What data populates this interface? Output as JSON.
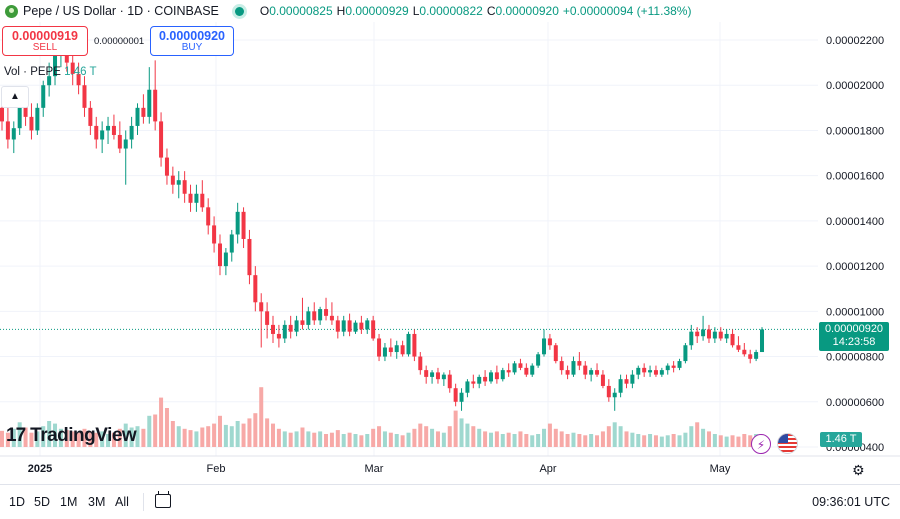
{
  "header": {
    "title": "Pepe / US Dollar · 1D · COINBASE",
    "open_key": "O",
    "open": "0.00000825",
    "high_key": "H",
    "high": "0.00000929",
    "low_key": "L",
    "low": "0.00000822",
    "close_key": "C",
    "close": "0.00000920",
    "change": "+0.00000094 (+11.38%)"
  },
  "trade": {
    "sell_price": "0.00000919",
    "sell_label": "SELL",
    "buy_price": "0.00000920",
    "buy_label": "BUY",
    "spread": "0.00000001"
  },
  "volume_legend": {
    "label": "Vol · PEPE",
    "value": "1.46 T"
  },
  "logo": {
    "text": "TradingView"
  },
  "price_tag": {
    "price": "0.00000920",
    "countdown": "14:23:58"
  },
  "volume_tag": "1.46 T",
  "bottom": {
    "ranges": [
      "1D",
      "5D",
      "1M",
      "3M",
      "All"
    ],
    "clock": "09:36:01 UTC"
  },
  "colors": {
    "up": "#089981",
    "down": "#f23645",
    "vol_up": "#9fd8cf",
    "vol_down": "#f7a9a7",
    "grid": "#f0f3fa"
  },
  "chart_data": {
    "type": "candlestick",
    "y_axis_labels": [
      "0.00002200",
      "0.00002000",
      "0.00001800",
      "0.00001600",
      "0.00001400",
      "0.00001200",
      "0.00001000",
      "0.00000800",
      "0.00000600",
      "0.00000400"
    ],
    "y_axis_values": [
      2.2e-05,
      2e-05,
      1.8e-05,
      1.6e-05,
      1.4e-05,
      1.2e-05,
      1e-05,
      8e-06,
      6e-06,
      4e-06
    ],
    "x_axis_labels": [
      "2025",
      "Feb",
      "Mar",
      "Apr",
      "May"
    ],
    "last_price": 9.2e-06,
    "candles": [
      [
        1.9e-05,
        1.96e-05,
        1.8e-05,
        1.84e-05
      ],
      [
        1.84e-05,
        1.9e-05,
        1.72e-05,
        1.76e-05
      ],
      [
        1.76e-05,
        1.84e-05,
        1.7e-05,
        1.81e-05
      ],
      [
        1.81e-05,
        1.94e-05,
        1.78e-05,
        1.91e-05
      ],
      [
        1.91e-05,
        1.96e-05,
        1.82e-05,
        1.86e-05
      ],
      [
        1.86e-05,
        1.92e-05,
        1.76e-05,
        1.8e-05
      ],
      [
        1.8e-05,
        1.92e-05,
        1.78e-05,
        1.9e-05
      ],
      [
        1.9e-05,
        2.02e-05,
        1.86e-05,
        2e-05
      ],
      [
        2e-05,
        2.1e-05,
        1.95e-05,
        2.04e-05
      ],
      [
        2.04e-05,
        2.18e-05,
        2e-05,
        2.14e-05
      ],
      [
        2.14e-05,
        2.24e-05,
        2.08e-05,
        2.16e-05
      ],
      [
        2.16e-05,
        2.2e-05,
        2.06e-05,
        2.1e-05
      ],
      [
        2.1e-05,
        2.14e-05,
        2e-05,
        2.05e-05
      ],
      [
        2.05e-05,
        2.1e-05,
        1.96e-05,
        2e-05
      ],
      [
        2e-05,
        2.04e-05,
        1.86e-05,
        1.9e-05
      ],
      [
        1.9e-05,
        1.93e-05,
        1.78e-05,
        1.82e-05
      ],
      [
        1.82e-05,
        1.86e-05,
        1.72e-05,
        1.76e-05
      ],
      [
        1.76e-05,
        1.84e-05,
        1.7e-05,
        1.8e-05
      ],
      [
        1.8e-05,
        1.86e-05,
        1.74e-05,
        1.82e-05
      ],
      [
        1.82e-05,
        1.87e-05,
        1.76e-05,
        1.78e-05
      ],
      [
        1.78e-05,
        1.84e-05,
        1.7e-05,
        1.72e-05
      ],
      [
        1.72e-05,
        1.8e-05,
        1.56e-05,
        1.76e-05
      ],
      [
        1.76e-05,
        1.86e-05,
        1.72e-05,
        1.82e-05
      ],
      [
        1.82e-05,
        1.92e-05,
        1.78e-05,
        1.9e-05
      ],
      [
        1.9e-05,
        1.96e-05,
        1.83e-05,
        1.86e-05
      ],
      [
        1.86e-05,
        2.08e-05,
        1.83e-05,
        1.98e-05
      ],
      [
        1.98e-05,
        2.11e-05,
        1.8e-05,
        1.84e-05
      ],
      [
        1.84e-05,
        1.88e-05,
        1.64e-05,
        1.68e-05
      ],
      [
        1.68e-05,
        1.72e-05,
        1.56e-05,
        1.6e-05
      ],
      [
        1.6e-05,
        1.64e-05,
        1.52e-05,
        1.56e-05
      ],
      [
        1.56e-05,
        1.62e-05,
        1.5e-05,
        1.58e-05
      ],
      [
        1.58e-05,
        1.62e-05,
        1.48e-05,
        1.52e-05
      ],
      [
        1.52e-05,
        1.56e-05,
        1.44e-05,
        1.48e-05
      ],
      [
        1.48e-05,
        1.56e-05,
        1.44e-05,
        1.52e-05
      ],
      [
        1.52e-05,
        1.58e-05,
        1.44e-05,
        1.46e-05
      ],
      [
        1.46e-05,
        1.5e-05,
        1.34e-05,
        1.38e-05
      ],
      [
        1.38e-05,
        1.42e-05,
        1.26e-05,
        1.3e-05
      ],
      [
        1.3e-05,
        1.34e-05,
        1.16e-05,
        1.2e-05
      ],
      [
        1.2e-05,
        1.28e-05,
        1.16e-05,
        1.26e-05
      ],
      [
        1.26e-05,
        1.36e-05,
        1.22e-05,
        1.34e-05
      ],
      [
        1.34e-05,
        1.48e-05,
        1.3e-05,
        1.44e-05
      ],
      [
        1.44e-05,
        1.46e-05,
        1.28e-05,
        1.32e-05
      ],
      [
        1.32e-05,
        1.36e-05,
        1.12e-05,
        1.16e-05
      ],
      [
        1.16e-05,
        1.2e-05,
        1e-05,
        1.04e-05
      ],
      [
        1.04e-05,
        1.08e-05,
        8.4e-06,
        1e-05
      ],
      [
        1e-05,
        1.04e-05,
        8.8e-06,
        9.4e-06
      ],
      [
        9.4e-06,
        9.8e-06,
        8.6e-06,
        9e-06
      ],
      [
        9e-06,
        9.4e-06,
        8.4e-06,
        8.8e-06
      ],
      [
        8.8e-06,
        9.6e-06,
        8.6e-06,
        9.4e-06
      ],
      [
        9.4e-06,
        9.8e-06,
        8.8e-06,
        9.1e-06
      ],
      [
        9.1e-06,
        9.8e-06,
        8.9e-06,
        9.6e-06
      ],
      [
        9.6e-06,
        1.06e-05,
        9.2e-06,
        9.4e-06
      ],
      [
        9.4e-06,
        1.02e-05,
        9.2e-06,
        1e-05
      ],
      [
        1e-05,
        1.04e-05,
        9.4e-06,
        9.6e-06
      ],
      [
        9.6e-06,
        1.02e-05,
        9.4e-06,
        1.01e-05
      ],
      [
        1.01e-05,
        1.06e-05,
        9.6e-06,
        9.8e-06
      ],
      [
        9.8e-06,
        1.04e-05,
        9.4e-06,
        9.6e-06
      ],
      [
        9.6e-06,
        9.8e-06,
        8.8e-06,
        9.1e-06
      ],
      [
        9.1e-06,
        9.8e-06,
        8.9e-06,
        9.6e-06
      ],
      [
        9.6e-06,
        9.9e-06,
        8.9e-06,
        9.1e-06
      ],
      [
        9.1e-06,
        9.6e-06,
        9e-06,
        9.5e-06
      ],
      [
        9.5e-06,
        9.8e-06,
        9e-06,
        9.2e-06
      ],
      [
        9.2e-06,
        9.7e-06,
        9e-06,
        9.6e-06
      ],
      [
        9.6e-06,
        9.8e-06,
        8.7e-06,
        8.8e-06
      ],
      [
        8.8e-06,
        9e-06,
        7.8e-06,
        8e-06
      ],
      [
        8e-06,
        8.6e-06,
        7.8e-06,
        8.4e-06
      ],
      [
        8.4e-06,
        8.8e-06,
        8e-06,
        8.2e-06
      ],
      [
        8.2e-06,
        8.7e-06,
        7.9e-06,
        8.5e-06
      ],
      [
        8.5e-06,
        8.7e-06,
        8e-06,
        8.1e-06
      ],
      [
        8.1e-06,
        9.1e-06,
        8e-06,
        9e-06
      ],
      [
        9e-06,
        9.2e-06,
        7.8e-06,
        8e-06
      ],
      [
        8e-06,
        8.2e-06,
        7.2e-06,
        7.4e-06
      ],
      [
        7.4e-06,
        7.6e-06,
        6.8e-06,
        7.1e-06
      ],
      [
        7.1e-06,
        7.4e-06,
        6.8e-06,
        7.3e-06
      ],
      [
        7.3e-06,
        7.5e-06,
        6.8e-06,
        7e-06
      ],
      [
        7e-06,
        7.3e-06,
        6.7e-06,
        7.2e-06
      ],
      [
        7.2e-06,
        7.4e-06,
        6.4e-06,
        6.6e-06
      ],
      [
        6.6e-06,
        6.8e-06,
        5.8e-06,
        6e-06
      ],
      [
        6e-06,
        6.6e-06,
        5.6e-06,
        6.4e-06
      ],
      [
        6.4e-06,
        7e-06,
        6.2e-06,
        6.9e-06
      ],
      [
        6.9e-06,
        7.2e-06,
        6.6e-06,
        6.8e-06
      ],
      [
        6.8e-06,
        7.2e-06,
        6.6e-06,
        7.1e-06
      ],
      [
        7.1e-06,
        7.4e-06,
        6.7e-06,
        6.9e-06
      ],
      [
        6.9e-06,
        7.4e-06,
        6.8e-06,
        7.3e-06
      ],
      [
        7.3e-06,
        7.6e-06,
        6.8e-06,
        7e-06
      ],
      [
        7e-06,
        7.5e-06,
        6.9e-06,
        7.4e-06
      ],
      [
        7.4e-06,
        7.7e-06,
        7.1e-06,
        7.3e-06
      ],
      [
        7.3e-06,
        7.8e-06,
        7.2e-06,
        7.7e-06
      ],
      [
        7.7e-06,
        7.9e-06,
        7.4e-06,
        7.5e-06
      ],
      [
        7.5e-06,
        7.7e-06,
        7.1e-06,
        7.2e-06
      ],
      [
        7.2e-06,
        7.7e-06,
        7.1e-06,
        7.6e-06
      ],
      [
        7.6e-06,
        8.2e-06,
        7.5e-06,
        8.1e-06
      ],
      [
        8.1e-06,
        9.2e-06,
        8e-06,
        8.8e-06
      ],
      [
        8.8e-06,
        9e-06,
        8.3e-06,
        8.5e-06
      ],
      [
        8.5e-06,
        8.6e-06,
        7.7e-06,
        7.8e-06
      ],
      [
        7.8e-06,
        8e-06,
        7.2e-06,
        7.4e-06
      ],
      [
        7.4e-06,
        7.6e-06,
        7e-06,
        7.2e-06
      ],
      [
        7.2e-06,
        8e-06,
        7.1e-06,
        7.8e-06
      ],
      [
        7.8e-06,
        8.2e-06,
        7.4e-06,
        7.6e-06
      ],
      [
        7.6e-06,
        7.8e-06,
        7e-06,
        7.2e-06
      ],
      [
        7.2e-06,
        7.5e-06,
        6.9e-06,
        7.4e-06
      ],
      [
        7.4e-06,
        7.7e-06,
        7.1e-06,
        7.2e-06
      ],
      [
        7.2e-06,
        7.4e-06,
        6.6e-06,
        6.7e-06
      ],
      [
        6.7e-06,
        7e-06,
        6e-06,
        6.2e-06
      ],
      [
        6.2e-06,
        6.6e-06,
        5.6e-06,
        6.4e-06
      ],
      [
        6.4e-06,
        7.2e-06,
        6.2e-06,
        7e-06
      ],
      [
        7e-06,
        7.2e-06,
        6.6e-06,
        6.8e-06
      ],
      [
        6.8e-06,
        7.4e-06,
        6.6e-06,
        7.2e-06
      ],
      [
        7.2e-06,
        7.6e-06,
        7e-06,
        7.5e-06
      ],
      [
        7.5e-06,
        7.7e-06,
        7.1e-06,
        7.3e-06
      ],
      [
        7.3e-06,
        7.6e-06,
        7.1e-06,
        7.4e-06
      ],
      [
        7.4e-06,
        7.6e-06,
        7.1e-06,
        7.2e-06
      ],
      [
        7.2e-06,
        7.5e-06,
        7.1e-06,
        7.4e-06
      ],
      [
        7.4e-06,
        7.7e-06,
        7.2e-06,
        7.6e-06
      ],
      [
        7.6e-06,
        7.8e-06,
        7.3e-06,
        7.5e-06
      ],
      [
        7.5e-06,
        7.9e-06,
        7.4e-06,
        7.8e-06
      ],
      [
        7.8e-06,
        8.6e-06,
        7.7e-06,
        8.5e-06
      ],
      [
        8.5e-06,
        9.4e-06,
        8.3e-06,
        9.1e-06
      ],
      [
        9.1e-06,
        9.3e-06,
        8.6e-06,
        8.9e-06
      ],
      [
        8.9e-06,
        9.8e-06,
        8.7e-06,
        9.2e-06
      ],
      [
        9.2e-06,
        9.4e-06,
        8.6e-06,
        8.8e-06
      ],
      [
        8.8e-06,
        9.3e-06,
        8.6e-06,
        9.1e-06
      ],
      [
        9.1e-06,
        9.3e-06,
        8.7e-06,
        8.8e-06
      ],
      [
        8.8e-06,
        9.2e-06,
        8.6e-06,
        9e-06
      ],
      [
        9e-06,
        9.2e-06,
        8.4e-06,
        8.5e-06
      ],
      [
        8.5e-06,
        8.9e-06,
        8.2e-06,
        8.3e-06
      ],
      [
        8.3e-06,
        8.6e-06,
        8e-06,
        8.1e-06
      ],
      [
        8.1e-06,
        8.3e-06,
        7.7e-06,
        7.9e-06
      ],
      [
        7.9e-06,
        8.3e-06,
        7.8e-06,
        8.2e-06
      ],
      [
        8.2e-06,
        9.3e-06,
        8.2e-06,
        9.2e-06
      ]
    ],
    "volumes": [
      0.62,
      0.55,
      0.7,
      0.95,
      0.75,
      0.55,
      0.6,
      0.8,
      1.0,
      0.9,
      0.7,
      0.65,
      0.6,
      0.55,
      0.7,
      0.6,
      0.55,
      0.6,
      0.5,
      0.55,
      0.7,
      0.9,
      0.75,
      0.8,
      0.7,
      1.2,
      1.25,
      1.9,
      1.5,
      1.0,
      0.8,
      0.7,
      0.65,
      0.6,
      0.75,
      0.8,
      0.9,
      1.2,
      0.85,
      0.8,
      1.0,
      0.9,
      1.1,
      1.3,
      2.3,
      1.1,
      0.9,
      0.7,
      0.6,
      0.55,
      0.6,
      0.75,
      0.6,
      0.55,
      0.6,
      0.5,
      0.55,
      0.65,
      0.5,
      0.55,
      0.5,
      0.45,
      0.5,
      0.7,
      0.8,
      0.6,
      0.55,
      0.5,
      0.45,
      0.55,
      0.7,
      0.9,
      0.8,
      0.7,
      0.6,
      0.55,
      0.8,
      1.4,
      1.1,
      0.9,
      0.8,
      0.7,
      0.6,
      0.55,
      0.6,
      0.5,
      0.55,
      0.5,
      0.6,
      0.5,
      0.45,
      0.5,
      0.7,
      0.9,
      0.7,
      0.6,
      0.5,
      0.55,
      0.5,
      0.45,
      0.5,
      0.45,
      0.6,
      0.8,
      0.95,
      0.8,
      0.6,
      0.55,
      0.5,
      0.45,
      0.5,
      0.45,
      0.4,
      0.45,
      0.5,
      0.45,
      0.55,
      0.8,
      0.95,
      0.7,
      0.6,
      0.5,
      0.45,
      0.4,
      0.45,
      0.4,
      0.5,
      0.45,
      0.5
    ]
  }
}
